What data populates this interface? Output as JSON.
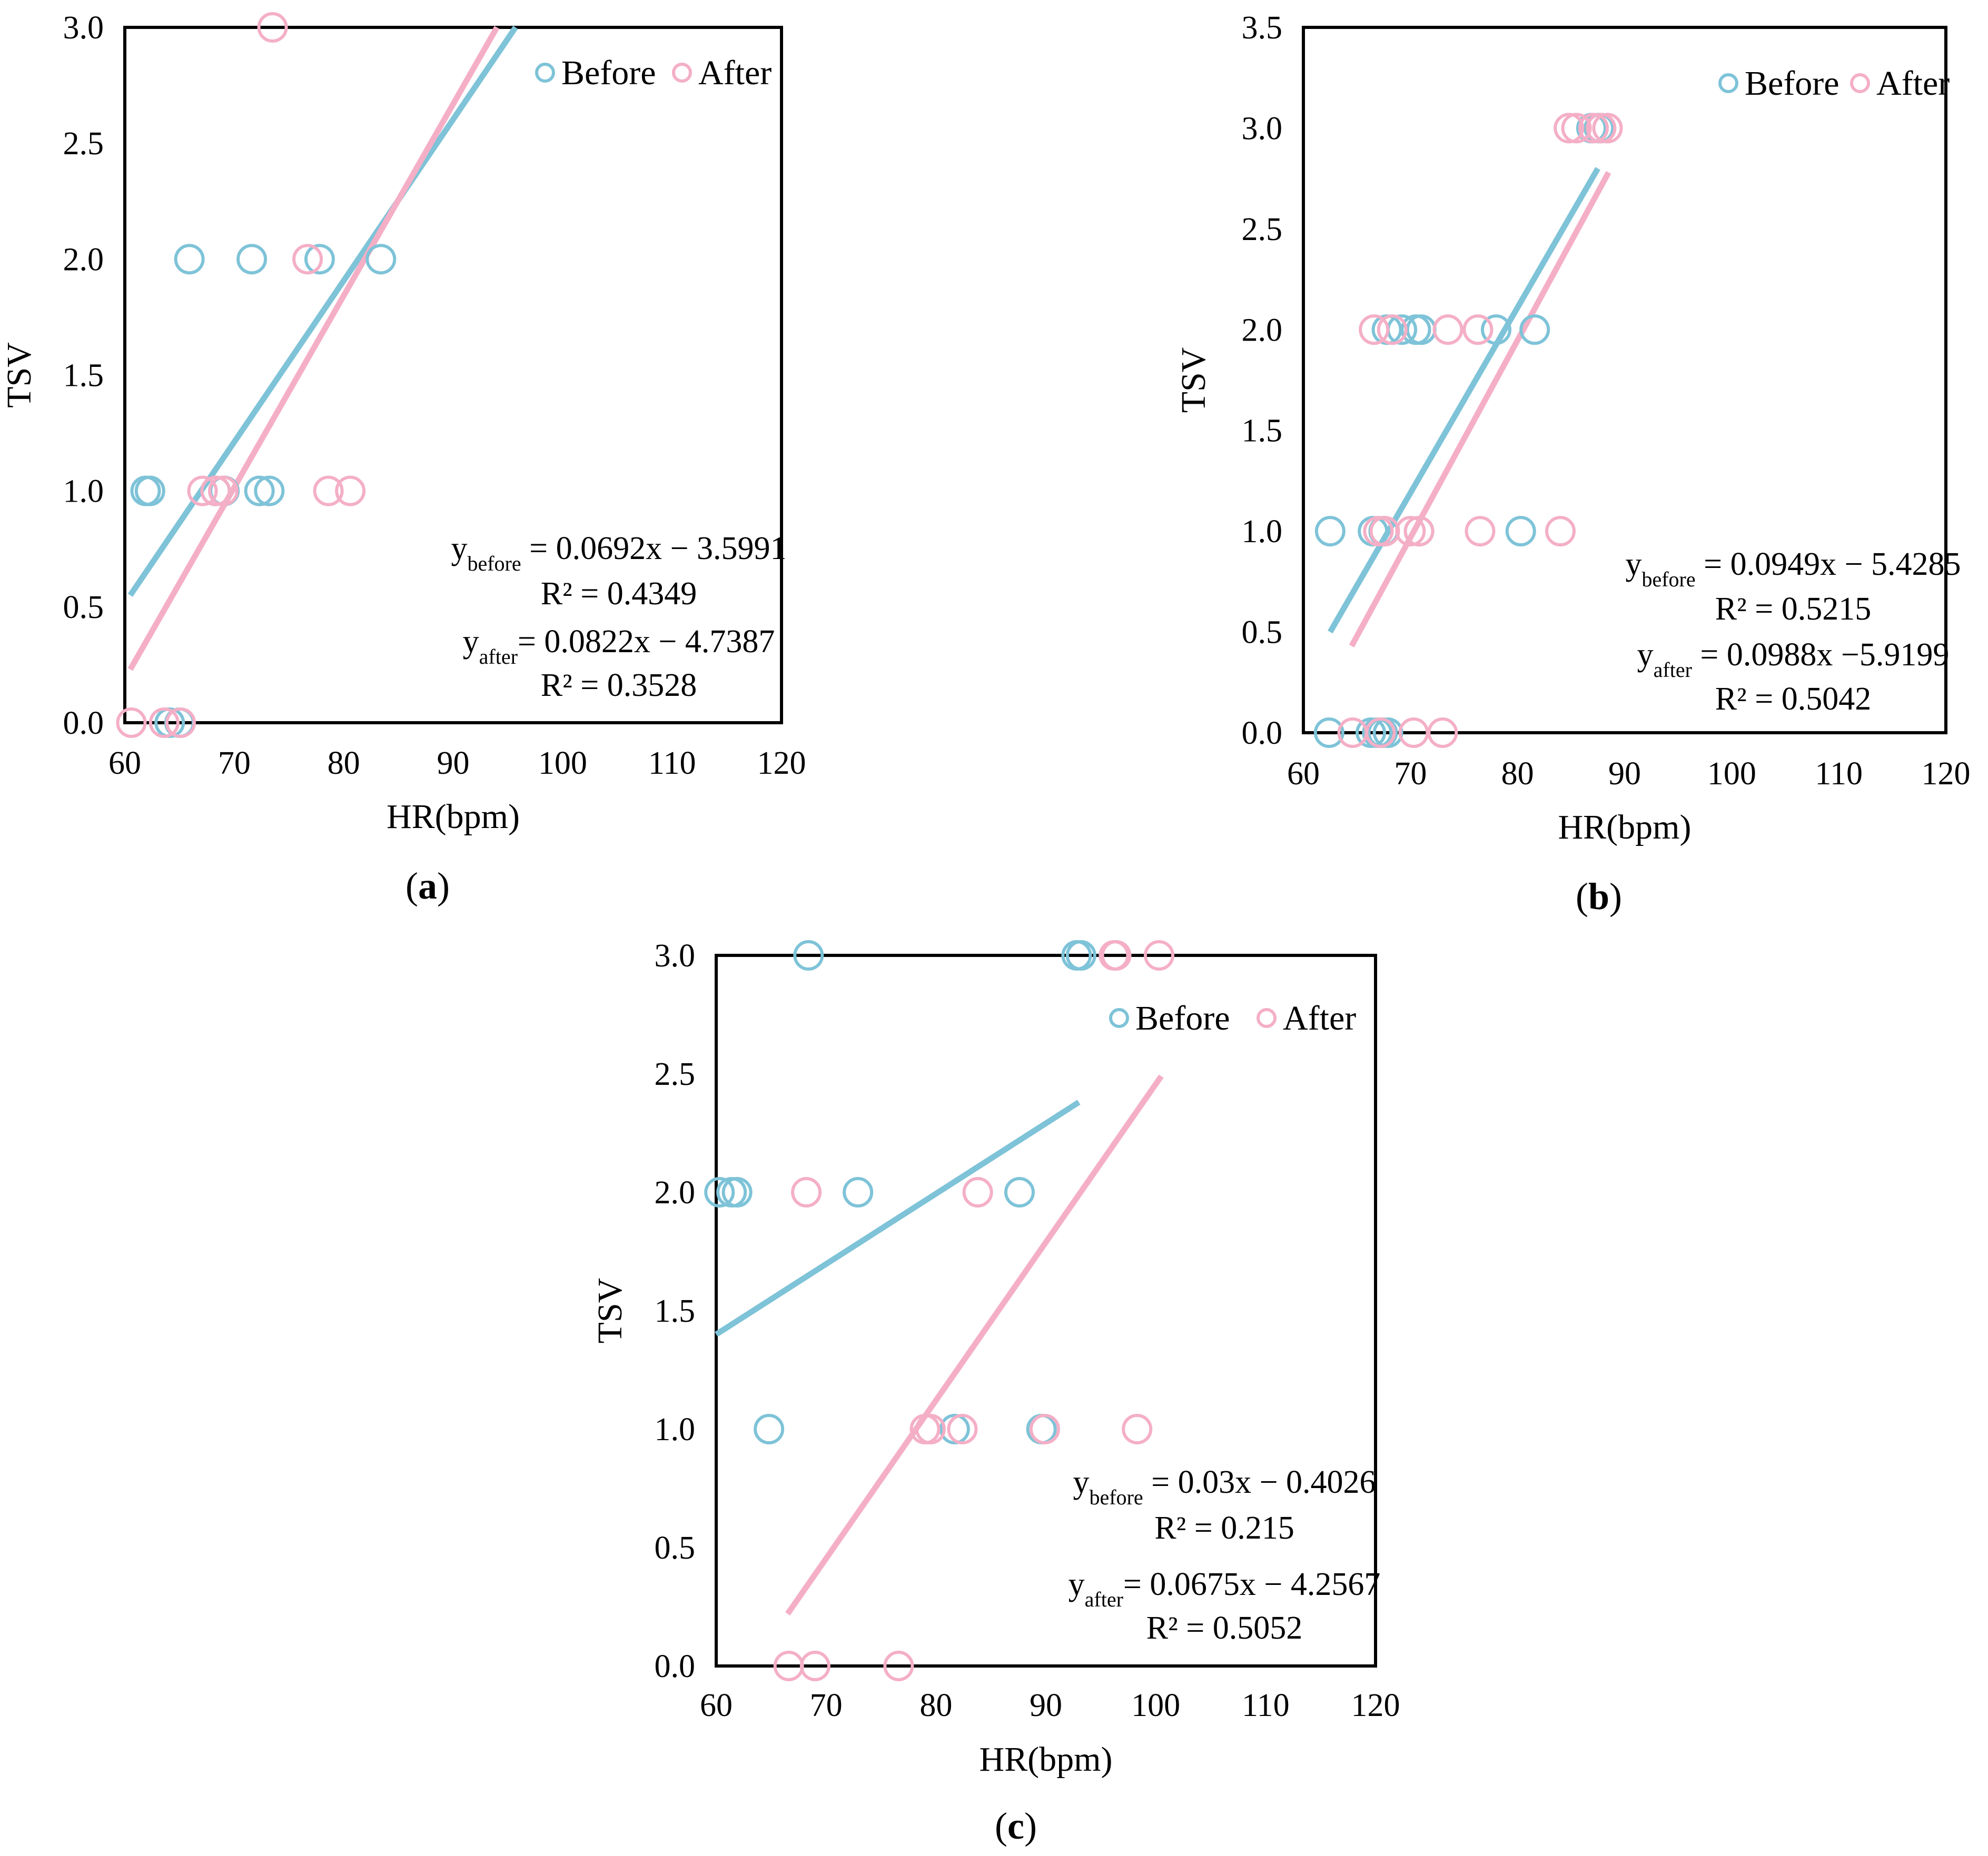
{
  "figure": {
    "colors": {
      "before": "#7EC3D8",
      "after": "#F4AFC6",
      "frame": "#000000"
    }
  },
  "chart_data": [
    {
      "id": "a",
      "type": "scatter",
      "caption": "(a)",
      "caption_letter": "a",
      "xlabel": "HR(bpm)",
      "ylabel": "TSV",
      "xlim": [
        60,
        120
      ],
      "ylim": [
        0,
        3.0
      ],
      "xticks": [
        "60",
        "70",
        "80",
        "90",
        "100",
        "110",
        "120"
      ],
      "yticks": [
        "0.0",
        "0.5",
        "1.0",
        "1.5",
        "2.0",
        "2.5",
        "3.0"
      ],
      "legend": {
        "position": "top-right",
        "entries": [
          "Before",
          "After"
        ]
      },
      "series": [
        {
          "name": "Before",
          "x": [
            65.9,
            71.6,
            77.8,
            83.4,
            61.9,
            62.3,
            68.3,
            69.1,
            72.3,
            73.2,
            64.1,
            65.0
          ],
          "y": [
            2,
            2,
            2,
            2,
            1,
            1,
            1,
            1,
            1,
            1,
            0,
            0
          ],
          "trend": {
            "x": [
              60.5,
              95.7
            ],
            "y": [
              0.55,
              3.0
            ]
          }
        },
        {
          "name": "After",
          "x": [
            73.5,
            76.7,
            67.1,
            68.3,
            69.0,
            78.6,
            80.6,
            60.6,
            63.6,
            65.1
          ],
          "y": [
            3,
            2,
            1,
            1,
            1,
            1,
            1,
            0,
            0,
            0
          ],
          "trend": {
            "x": [
              60.5,
              94.0
            ],
            "y": [
              0.23,
              3.0
            ]
          }
        }
      ],
      "equations": [
        {
          "main": "y",
          "sub": "before",
          "rest": " = 0.0692x − 3.5991",
          "r2": "R² = 0.4349"
        },
        {
          "main": "y",
          "sub": "after",
          "rest": "= 0.0822x −  4.7387",
          "r2": "R² = 0.3528"
        }
      ]
    },
    {
      "id": "b",
      "type": "scatter",
      "caption": "(b)",
      "caption_letter": "b",
      "xlabel": "HR(bpm)",
      "ylabel": "TSV",
      "xlim": [
        60,
        120
      ],
      "ylim": [
        0,
        3.5
      ],
      "xticks": [
        "60",
        "70",
        "80",
        "90",
        "100",
        "110",
        "120"
      ],
      "yticks": [
        "0.0",
        "0.5",
        "1.0",
        "1.5",
        "2.0",
        "2.5",
        "3.0",
        "3.5"
      ],
      "legend": {
        "position": "top-right",
        "entries": [
          "Before",
          "After"
        ]
      },
      "series": [
        {
          "name": "Before",
          "x": [
            86.9,
            87.6,
            67.8,
            69.2,
            70.5,
            71.0,
            78.0,
            81.6,
            62.5,
            66.5,
            67.5,
            70.8,
            80.3,
            62.4,
            66.3,
            66.9,
            67.4,
            67.9
          ],
          "y": [
            3,
            3,
            2,
            2,
            2,
            2,
            2,
            2,
            1,
            1,
            1,
            1,
            1,
            0,
            0,
            0,
            0,
            0
          ],
          "trend": {
            "x": [
              62.5,
              87.5
            ],
            "y": [
              0.5,
              2.8
            ]
          }
        },
        {
          "name": "After",
          "x": [
            84.8,
            85.5,
            87.1,
            87.8,
            88.4,
            66.6,
            68.3,
            73.5,
            76.3,
            67.0,
            67.6,
            70.0,
            70.8,
            76.5,
            84.0,
            64.6,
            67.2,
            70.3,
            73.0
          ],
          "y": [
            3,
            3,
            3,
            3,
            3,
            2,
            2,
            2,
            2,
            1,
            1,
            1,
            1,
            1,
            1,
            0,
            0,
            0,
            0
          ],
          "trend": {
            "x": [
              64.5,
              88.5
            ],
            "y": [
              0.43,
              2.78
            ]
          }
        }
      ],
      "equations": [
        {
          "main": "y",
          "sub": "before",
          "rest": " = 0.0949x −  5.4285",
          "r2": "R² = 0.5215"
        },
        {
          "main": "y",
          "sub": "after",
          "rest": " = 0.0988x −5.9199",
          "r2": "R² = 0.5042"
        }
      ]
    },
    {
      "id": "c",
      "type": "scatter",
      "caption": "(c)",
      "caption_letter": "c",
      "xlabel": "HR(bpm)",
      "ylabel": "TSV",
      "xlim": [
        60,
        120
      ],
      "ylim": [
        0,
        3.0
      ],
      "xticks": [
        "60",
        "70",
        "80",
        "90",
        "100",
        "110",
        "120"
      ],
      "yticks": [
        "0.0",
        "0.5",
        "1.0",
        "1.5",
        "2.0",
        "2.5",
        "3.0"
      ],
      "legend": {
        "position": "top-right",
        "entries": [
          "Before",
          "After"
        ]
      },
      "series": [
        {
          "name": "Before",
          "x": [
            68.4,
            92.8,
            93.2,
            60.3,
            61.4,
            61.9,
            72.9,
            87.6,
            64.8,
            81.7,
            89.6
          ],
          "y": [
            3,
            3,
            3,
            2,
            2,
            2,
            2,
            2,
            1,
            1,
            1
          ],
          "trend": {
            "x": [
              60.0,
              93.0
            ],
            "y": [
              1.4,
              2.38
            ]
          }
        },
        {
          "name": "After",
          "x": [
            96.2,
            96.4,
            100.3,
            68.2,
            83.8,
            79.0,
            79.5,
            82.4,
            89.9,
            98.3,
            66.6,
            69.0,
            76.6
          ],
          "y": [
            3,
            3,
            3,
            2,
            2,
            1,
            1,
            1,
            1,
            1,
            0,
            0,
            0
          ],
          "trend": {
            "x": [
              66.5,
              100.5
            ],
            "y": [
              0.22,
              2.49
            ]
          }
        }
      ],
      "equations": [
        {
          "main": "y",
          "sub": "before",
          "rest": " = 0.03x −  0.4026",
          "r2": "R² = 0.215"
        },
        {
          "main": "y",
          "sub": "after",
          "rest": "= 0.0675x − 4.2567",
          "r2": "R² = 0.5052"
        }
      ]
    }
  ]
}
